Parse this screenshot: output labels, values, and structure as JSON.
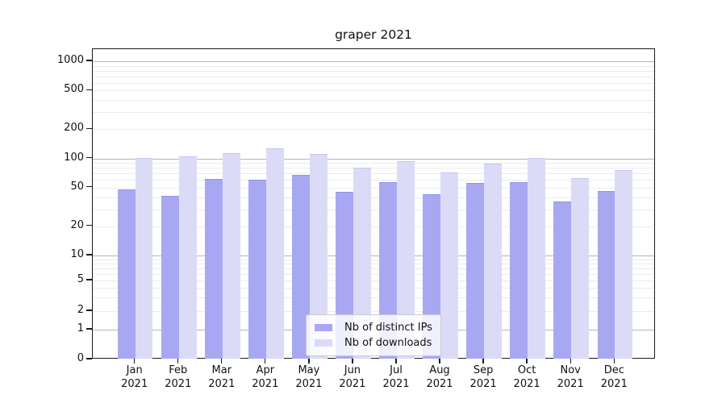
{
  "title": "graper 2021",
  "legend": {
    "items": [
      {
        "label": "Nb of distinct IPs",
        "color": "#a8a8f2",
        "edge": "#9494e6"
      },
      {
        "label": "Nb of downloads",
        "color": "#dbdbf8",
        "edge": "#c6c6f0"
      }
    ]
  },
  "chart_data": {
    "type": "bar",
    "title": "graper 2021",
    "categories": [
      "Jan 2021",
      "Feb 2021",
      "Mar 2021",
      "Apr 2021",
      "May 2021",
      "Jun 2021",
      "Jul 2021",
      "Aug 2021",
      "Sep 2021",
      "Oct 2021",
      "Nov 2021",
      "Dec 2021"
    ],
    "x_tick_line1": [
      "Jan",
      "Feb",
      "Mar",
      "Apr",
      "May",
      "Jun",
      "Jul",
      "Aug",
      "Sep",
      "Oct",
      "Nov",
      "Dec"
    ],
    "x_tick_line2": [
      "2021",
      "2021",
      "2021",
      "2021",
      "2021",
      "2021",
      "2021",
      "2021",
      "2021",
      "2021",
      "2021",
      "2021"
    ],
    "series": [
      {
        "name": "Nb of distinct IPs",
        "color": "#a8a8f2",
        "edge": "#9494e6",
        "values": [
          48,
          41,
          62,
          60,
          68,
          45,
          57,
          43,
          56,
          57,
          36,
          46
        ]
      },
      {
        "name": "Nb of downloads",
        "color": "#dbdbf8",
        "edge": "#c6c6f0",
        "values": [
          102,
          105,
          114,
          127,
          112,
          81,
          94,
          71,
          89,
          102,
          63,
          76
        ]
      }
    ],
    "xlabel": "",
    "ylabel": "",
    "yscale": "symlog",
    "yticks": [
      0,
      1,
      2,
      5,
      10,
      20,
      50,
      100,
      200,
      500,
      1000
    ],
    "ylim": [
      0,
      1400
    ],
    "grid": true,
    "legend_position": "lower center"
  }
}
